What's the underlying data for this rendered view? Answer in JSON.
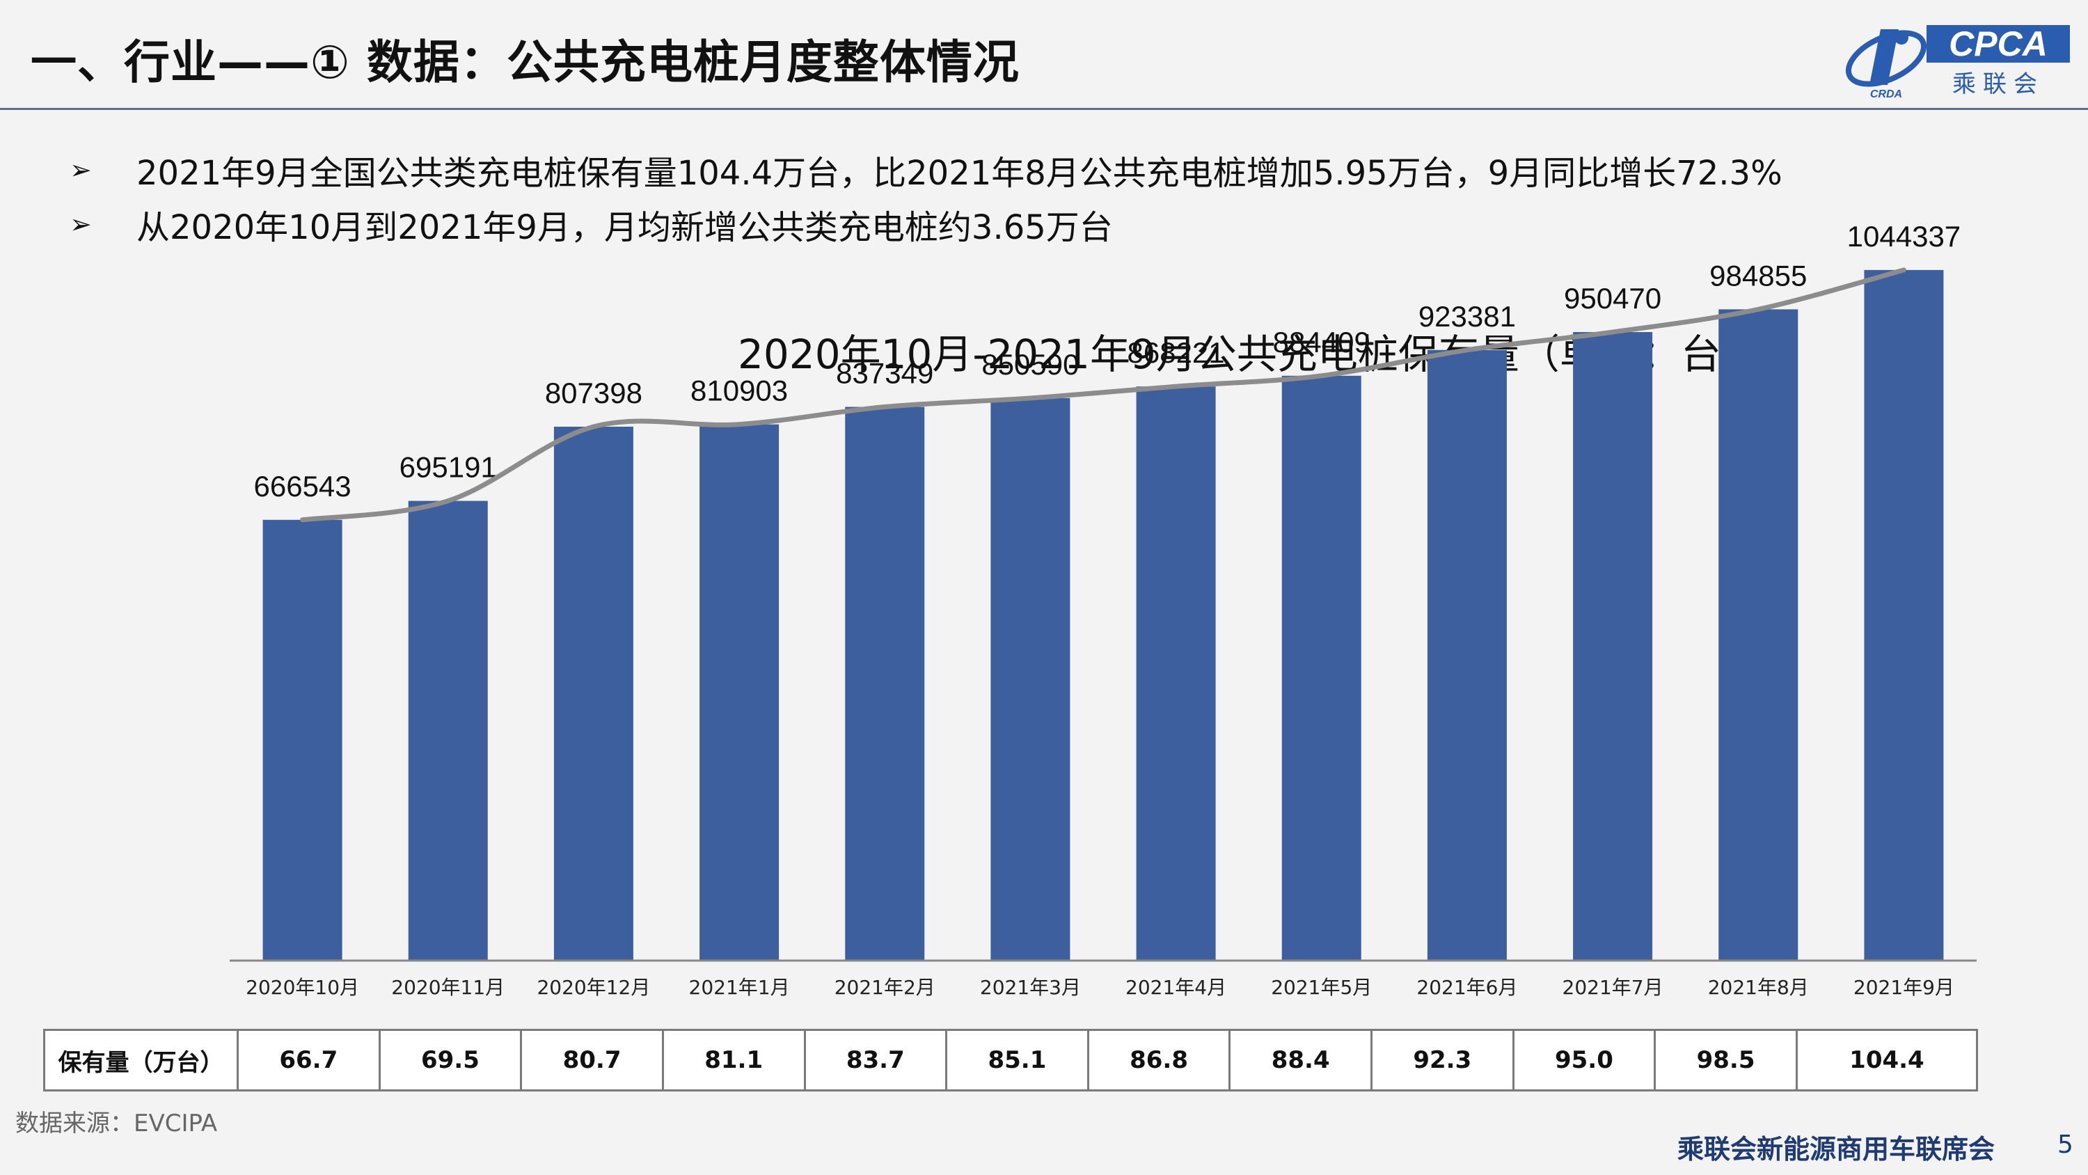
{
  "header": {
    "title": "一、行业——① 数据：公共充电桩月度整体情况",
    "logo_text": "CPCA",
    "logo_sub": "乘联会",
    "logo_small": "CRDA"
  },
  "bullets": [
    {
      "marker": "➢",
      "text": "2021年9月全国公共类充电桩保有量104.4万台，比2021年8月公共充电桩增加5.95万台，9月同比增长72.3%"
    },
    {
      "marker": "➢",
      "text": "从2020年10月到2021年9月，月均新增公共类充电桩约3.65万台"
    }
  ],
  "chart_data": {
    "type": "bar",
    "title": "2020年10月-2021年9月公共充电桩保有量（单位：台）",
    "categories": [
      "2020年10月",
      "2020年11月",
      "2020年12月",
      "2021年1月",
      "2021年2月",
      "2021年3月",
      "2021年4月",
      "2021年5月",
      "2021年6月",
      "2021年7月",
      "2021年8月",
      "2021年9月"
    ],
    "values": [
      666543,
      695191,
      807398,
      810903,
      837349,
      850590,
      868221,
      884409,
      923381,
      950470,
      984855,
      1044337
    ],
    "ylim": [
      0,
      1200000
    ],
    "trend_line": true,
    "legend": "none",
    "grid": false,
    "colors": {
      "bar": "#3e5f9e",
      "line": "#8c8c8c"
    }
  },
  "table": {
    "header": "保有量（万台）",
    "values": [
      "66.7",
      "69.5",
      "80.7",
      "81.1",
      "83.7",
      "85.1",
      "86.8",
      "88.4",
      "92.3",
      "95.0",
      "98.5",
      "104.4"
    ]
  },
  "footer": {
    "source": "数据来源：EVCIPA",
    "org": "乘联会新能源商用车联席会",
    "page": "5"
  }
}
